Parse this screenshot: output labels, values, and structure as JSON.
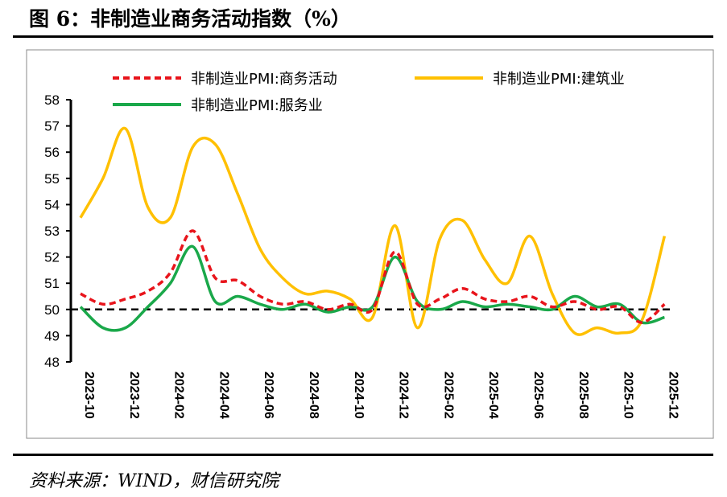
{
  "title": "图 6：非制造业商务活动指数（%）",
  "source": "资料来源：WIND，财信研究院",
  "chart_data": {
    "type": "line",
    "title": "",
    "xlabel": "",
    "ylabel": "",
    "ylim": [
      48,
      58
    ],
    "yticks": [
      "48",
      "49",
      "50",
      "51",
      "52",
      "53",
      "54",
      "55",
      "56",
      "57",
      "58"
    ],
    "x": [
      "2023-10",
      "2023-11",
      "2023-12",
      "2024-01",
      "2024-02",
      "2024-03",
      "2024-04",
      "2024-05",
      "2024-06",
      "2024-07",
      "2024-08",
      "2024-09",
      "2024-10",
      "2024-11",
      "2024-12",
      "2025-01",
      "2025-02",
      "2025-03",
      "2025-04",
      "2025-05",
      "2025-06",
      "2025-07",
      "2025-08",
      "2025-09",
      "2025-10",
      "2025-11",
      "2025-12"
    ],
    "xtick_labels": [
      "2023-10",
      "2023-12",
      "2024-02",
      "2024-04",
      "2024-06",
      "2024-08",
      "2024-10",
      "2024-12",
      "2025-02",
      "2025-04",
      "2025-06",
      "2025-08",
      "2025-10",
      "2025-12"
    ],
    "reference_line": 50,
    "grid": false,
    "legend_position": "top",
    "series": [
      {
        "name": "非制造业PMI:商务活动",
        "color": "#e8141b",
        "style": "dashed",
        "values": [
          50.6,
          50.2,
          50.4,
          50.7,
          51.4,
          53.0,
          51.2,
          51.1,
          50.5,
          50.2,
          50.3,
          50.0,
          50.2,
          50.0,
          52.2,
          50.2,
          50.4,
          50.8,
          50.4,
          50.3,
          50.5,
          50.1,
          50.3,
          50.0,
          50.1,
          49.5,
          50.2
        ]
      },
      {
        "name": "非制造业PMI:建筑业",
        "color": "#ffc000",
        "style": "solid",
        "values": [
          53.5,
          55.0,
          56.9,
          53.9,
          53.5,
          56.2,
          56.3,
          54.4,
          52.3,
          51.2,
          50.6,
          50.7,
          50.4,
          49.7,
          53.2,
          49.3,
          52.7,
          53.4,
          51.9,
          51.0,
          52.8,
          50.6,
          49.1,
          49.3,
          49.1,
          49.6,
          52.8
        ]
      },
      {
        "name": "非制造业PMI:服务业",
        "color": "#1aa84a",
        "style": "solid",
        "values": [
          50.1,
          49.3,
          49.3,
          50.1,
          51.0,
          52.4,
          50.3,
          50.5,
          50.2,
          50.0,
          50.2,
          49.9,
          50.1,
          50.1,
          52.0,
          50.3,
          50.0,
          50.3,
          50.1,
          50.2,
          50.1,
          50.0,
          50.5,
          50.1,
          50.2,
          49.5,
          49.7
        ]
      }
    ]
  }
}
